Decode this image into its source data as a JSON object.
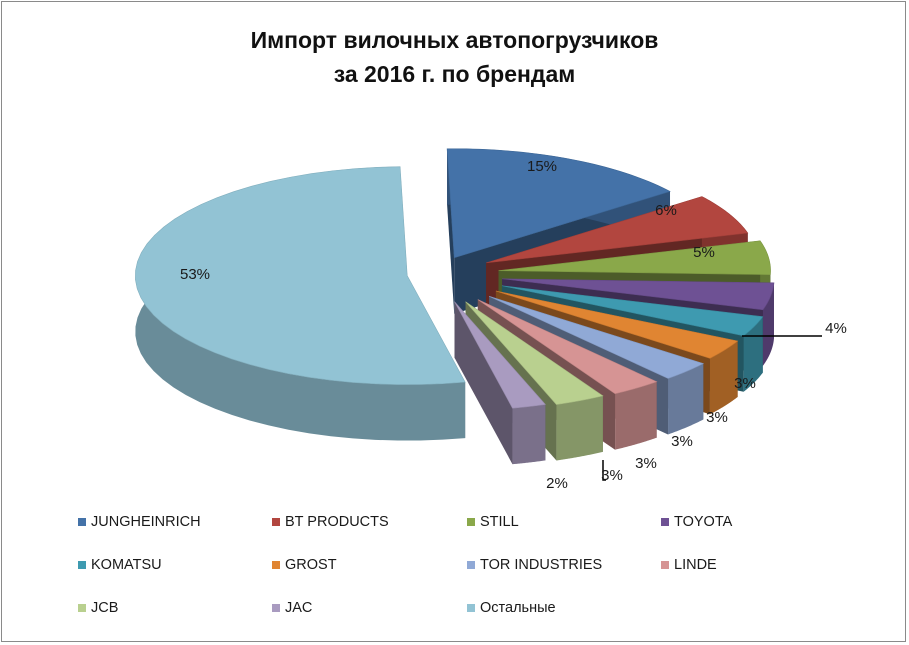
{
  "chart_data": {
    "type": "pie",
    "title_line1": "Импорт вилочных автопогрузчиков",
    "title_line2": "за 2016 г.  по брендам",
    "series": [
      {
        "name": "JUNGHEINRICH",
        "value": 15,
        "label": "15%",
        "color": "#4472A8"
      },
      {
        "name": "BT PRODUCTS",
        "value": 6,
        "label": "6%",
        "color": "#B2463F"
      },
      {
        "name": "STILL",
        "value": 5,
        "label": "5%",
        "color": "#8AA84A"
      },
      {
        "name": "TOYOTA",
        "value": 4,
        "label": "4%",
        "color": "#6E5194"
      },
      {
        "name": "KOMATSU",
        "value": 3,
        "label": "3%",
        "color": "#3E9AB0"
      },
      {
        "name": "GROST",
        "value": 3,
        "label": "3%",
        "color": "#E08532"
      },
      {
        "name": "TOR INDUSTRIES",
        "value": 3,
        "label": "3%",
        "color": "#90A9D6"
      },
      {
        "name": "LINDE",
        "value": 3,
        "label": "3%",
        "color": "#D69494"
      },
      {
        "name": "JCB",
        "value": 3,
        "label": "3%",
        "color": "#B9D08F"
      },
      {
        "name": "JAC",
        "value": 2,
        "label": "2%",
        "color": "#A99BC0"
      },
      {
        "name": "Остальные",
        "value": 53,
        "label": "53%",
        "color": "#92C3D4"
      }
    ],
    "legend_position": "bottom"
  }
}
